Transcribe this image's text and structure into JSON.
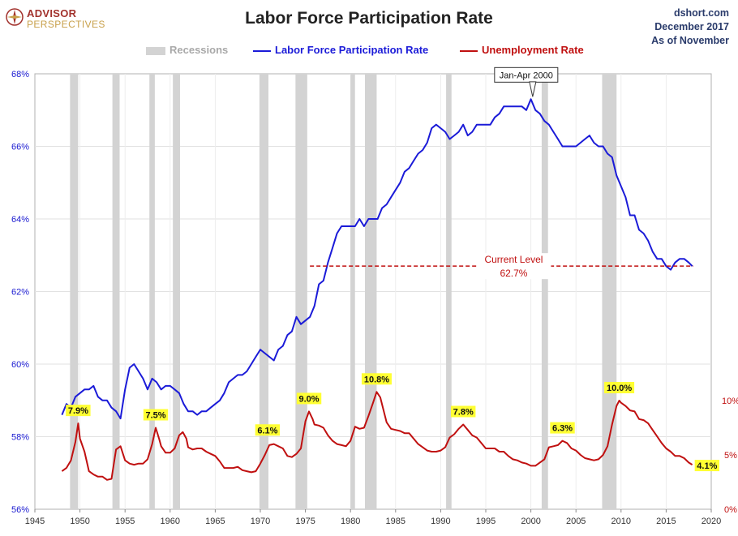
{
  "header": {
    "logo_line1": "ADVISOR",
    "logo_line2": "PERSPECTIVES",
    "title": "Labor Force Participation Rate",
    "source_line1": "dshort.com",
    "source_line2": "December 2017",
    "source_line3": "As of November"
  },
  "colors": {
    "participation": "#1b1bd8",
    "unemployment": "#c01010",
    "recession": "#d3d3d3",
    "left_axis_text": "#1a1ad0",
    "right_axis_text": "#c01010",
    "label_bg": "#ffff33"
  },
  "legend": {
    "recessions": "Recessions",
    "participation": "Labor Force Participation Rate",
    "unemployment": "Unemployment Rate"
  },
  "annotations": {
    "peak_label": "Jan-Apr 2000",
    "current_label_line1": "Current Level",
    "current_label_line2": "62.7%"
  },
  "chart_data": {
    "type": "line",
    "title": "Labor Force Participation Rate",
    "x_range": [
      1945,
      2020
    ],
    "x_ticks": [
      "1945",
      "1950",
      "1955",
      "1960",
      "1965",
      "1970",
      "1975",
      "1980",
      "1985",
      "1990",
      "1995",
      "2000",
      "2005",
      "2010",
      "2015",
      "2020"
    ],
    "left_axis": {
      "range": [
        56,
        68
      ],
      "ticks": [
        "56%",
        "58%",
        "60%",
        "62%",
        "64%",
        "66%",
        "68%"
      ],
      "tick_values": [
        56,
        58,
        60,
        62,
        64,
        66,
        68
      ]
    },
    "right_axis": {
      "range": [
        0,
        10
      ],
      "ticks": [
        "0%",
        "5%",
        "10%"
      ],
      "tick_values": [
        0,
        5,
        10
      ]
    },
    "grid": true,
    "legend_position": "top",
    "recessions": [
      [
        1948.9,
        1949.8
      ],
      [
        1953.6,
        1954.4
      ],
      [
        1957.7,
        1958.3
      ],
      [
        1960.3,
        1961.1
      ],
      [
        1969.9,
        1970.9
      ],
      [
        1973.9,
        1975.2
      ],
      [
        1980.0,
        1980.5
      ],
      [
        1981.6,
        1982.9
      ],
      [
        1990.6,
        1991.2
      ],
      [
        2001.2,
        2001.9
      ],
      [
        2007.9,
        2009.5
      ]
    ],
    "series": [
      {
        "name": "Labor Force Participation Rate",
        "axis": "left",
        "x": [
          1948.0,
          1948.5,
          1949.0,
          1949.5,
          1950.0,
          1950.5,
          1951.0,
          1951.5,
          1952.0,
          1952.5,
          1953.0,
          1953.5,
          1954.0,
          1954.5,
          1955.0,
          1955.5,
          1956.0,
          1956.5,
          1957.0,
          1957.5,
          1958.0,
          1958.5,
          1959.0,
          1959.5,
          1960.0,
          1960.5,
          1961.0,
          1961.5,
          1962.0,
          1962.5,
          1963.0,
          1963.5,
          1964.0,
          1964.5,
          1965.0,
          1965.5,
          1966.0,
          1966.5,
          1967.0,
          1967.5,
          1968.0,
          1968.5,
          1969.0,
          1969.5,
          1970.0,
          1970.5,
          1971.0,
          1971.5,
          1972.0,
          1972.5,
          1973.0,
          1973.5,
          1974.0,
          1974.5,
          1975.0,
          1975.5,
          1976.0,
          1976.5,
          1977.0,
          1977.5,
          1978.0,
          1978.5,
          1979.0,
          1979.5,
          1980.0,
          1980.5,
          1981.0,
          1981.5,
          1982.0,
          1982.5,
          1983.0,
          1983.5,
          1984.0,
          1984.5,
          1985.0,
          1985.5,
          1986.0,
          1986.5,
          1987.0,
          1987.5,
          1988.0,
          1988.5,
          1989.0,
          1989.5,
          1990.0,
          1990.5,
          1991.0,
          1991.5,
          1992.0,
          1992.5,
          1993.0,
          1993.5,
          1994.0,
          1994.5,
          1995.0,
          1995.5,
          1996.0,
          1996.5,
          1997.0,
          1997.5,
          1998.0,
          1998.5,
          1999.0,
          1999.5,
          2000.0,
          2000.5,
          2001.0,
          2001.5,
          2002.0,
          2002.5,
          2003.0,
          2003.5,
          2004.0,
          2004.5,
          2005.0,
          2005.5,
          2006.0,
          2006.5,
          2007.0,
          2007.5,
          2008.0,
          2008.5,
          2009.0,
          2009.5,
          2010.0,
          2010.5,
          2011.0,
          2011.5,
          2012.0,
          2012.5,
          2013.0,
          2013.5,
          2014.0,
          2014.5,
          2015.0,
          2015.5,
          2016.0,
          2016.5,
          2017.0,
          2017.5,
          2017.9
        ],
        "values": [
          58.6,
          58.9,
          58.8,
          59.1,
          59.2,
          59.3,
          59.3,
          59.4,
          59.1,
          59.0,
          59.0,
          58.8,
          58.7,
          58.5,
          59.3,
          59.9,
          60.0,
          59.8,
          59.6,
          59.3,
          59.6,
          59.5,
          59.3,
          59.4,
          59.4,
          59.3,
          59.2,
          58.9,
          58.7,
          58.7,
          58.6,
          58.7,
          58.7,
          58.8,
          58.9,
          59.0,
          59.2,
          59.5,
          59.6,
          59.7,
          59.7,
          59.8,
          60.0,
          60.2,
          60.4,
          60.3,
          60.2,
          60.1,
          60.4,
          60.5,
          60.8,
          60.9,
          61.3,
          61.1,
          61.2,
          61.3,
          61.6,
          62.2,
          62.3,
          62.8,
          63.2,
          63.6,
          63.8,
          63.8,
          63.8,
          63.8,
          64.0,
          63.8,
          64.0,
          64.0,
          64.0,
          64.3,
          64.4,
          64.6,
          64.8,
          65.0,
          65.3,
          65.4,
          65.6,
          65.8,
          65.9,
          66.1,
          66.5,
          66.6,
          66.5,
          66.4,
          66.2,
          66.3,
          66.4,
          66.6,
          66.3,
          66.4,
          66.6,
          66.6,
          66.6,
          66.6,
          66.8,
          66.9,
          67.1,
          67.1,
          67.1,
          67.1,
          67.1,
          67.0,
          67.3,
          67.0,
          66.9,
          66.7,
          66.6,
          66.4,
          66.2,
          66.0,
          66.0,
          66.0,
          66.0,
          66.1,
          66.2,
          66.3,
          66.1,
          66.0,
          66.0,
          65.8,
          65.7,
          65.2,
          64.9,
          64.6,
          64.1,
          64.1,
          63.7,
          63.6,
          63.4,
          63.1,
          62.9,
          62.9,
          62.7,
          62.6,
          62.8,
          62.9,
          62.9,
          62.8,
          62.7
        ]
      },
      {
        "name": "Unemployment Rate",
        "axis": "right",
        "x": [
          1948.0,
          1948.5,
          1949.0,
          1949.5,
          1949.8,
          1950.0,
          1950.5,
          1951.0,
          1951.5,
          1952.0,
          1952.5,
          1953.0,
          1953.5,
          1954.0,
          1954.5,
          1955.0,
          1955.5,
          1956.0,
          1956.5,
          1957.0,
          1957.5,
          1958.0,
          1958.4,
          1958.8,
          1959.0,
          1959.5,
          1960.0,
          1960.5,
          1961.0,
          1961.4,
          1961.8,
          1962.0,
          1962.5,
          1963.0,
          1963.5,
          1964.0,
          1964.5,
          1965.0,
          1965.5,
          1966.0,
          1966.5,
          1967.0,
          1967.5,
          1968.0,
          1968.5,
          1969.0,
          1969.5,
          1970.0,
          1970.5,
          1971.0,
          1971.5,
          1972.0,
          1972.5,
          1973.0,
          1973.5,
          1974.0,
          1974.5,
          1975.0,
          1975.4,
          1975.8,
          1976.0,
          1976.5,
          1977.0,
          1977.5,
          1978.0,
          1978.5,
          1979.0,
          1979.5,
          1980.0,
          1980.5,
          1981.0,
          1981.5,
          1982.0,
          1982.5,
          1982.9,
          1983.3,
          1983.7,
          1984.0,
          1984.5,
          1985.0,
          1985.5,
          1986.0,
          1986.5,
          1987.0,
          1987.5,
          1988.0,
          1988.5,
          1989.0,
          1989.5,
          1990.0,
          1990.5,
          1991.0,
          1991.5,
          1992.0,
          1992.5,
          1993.0,
          1993.5,
          1994.0,
          1994.5,
          1995.0,
          1995.5,
          1996.0,
          1996.5,
          1997.0,
          1997.5,
          1998.0,
          1998.5,
          1999.0,
          1999.5,
          2000.0,
          2000.5,
          2001.0,
          2001.5,
          2002.0,
          2002.5,
          2003.0,
          2003.5,
          2004.0,
          2004.5,
          2005.0,
          2005.5,
          2006.0,
          2006.5,
          2007.0,
          2007.5,
          2008.0,
          2008.5,
          2009.0,
          2009.5,
          2009.8,
          2010.0,
          2010.5,
          2011.0,
          2011.5,
          2012.0,
          2012.5,
          2013.0,
          2013.5,
          2014.0,
          2014.5,
          2015.0,
          2015.5,
          2016.0,
          2016.5,
          2017.0,
          2017.5,
          2017.9
        ],
        "values": [
          3.5,
          3.8,
          4.5,
          6.2,
          7.9,
          6.5,
          5.3,
          3.5,
          3.2,
          3.0,
          3.0,
          2.7,
          2.8,
          5.5,
          5.8,
          4.5,
          4.2,
          4.1,
          4.2,
          4.2,
          4.6,
          6.0,
          7.5,
          6.4,
          5.8,
          5.2,
          5.2,
          5.6,
          6.8,
          7.1,
          6.5,
          5.7,
          5.5,
          5.6,
          5.6,
          5.3,
          5.1,
          4.9,
          4.4,
          3.8,
          3.8,
          3.8,
          3.9,
          3.6,
          3.5,
          3.4,
          3.5,
          4.2,
          5.0,
          5.9,
          6.0,
          5.8,
          5.6,
          4.9,
          4.8,
          5.1,
          5.6,
          8.1,
          9.0,
          8.3,
          7.8,
          7.7,
          7.5,
          6.8,
          6.3,
          6.0,
          5.9,
          5.8,
          6.3,
          7.6,
          7.4,
          7.5,
          8.6,
          9.8,
          10.8,
          10.3,
          9.0,
          8.0,
          7.4,
          7.3,
          7.2,
          7.0,
          7.0,
          6.5,
          6.0,
          5.7,
          5.4,
          5.3,
          5.3,
          5.4,
          5.7,
          6.6,
          6.9,
          7.4,
          7.8,
          7.3,
          6.8,
          6.6,
          6.1,
          5.6,
          5.6,
          5.6,
          5.3,
          5.3,
          4.9,
          4.6,
          4.5,
          4.3,
          4.2,
          4.0,
          4.0,
          4.3,
          4.6,
          5.7,
          5.8,
          5.9,
          6.3,
          6.1,
          5.6,
          5.4,
          5.0,
          4.7,
          4.6,
          4.5,
          4.6,
          5.0,
          5.8,
          7.8,
          9.5,
          10.0,
          9.8,
          9.5,
          9.1,
          9.0,
          8.3,
          8.2,
          7.9,
          7.3,
          6.7,
          6.1,
          5.6,
          5.3,
          4.9,
          4.9,
          4.7,
          4.3,
          4.1
        ]
      }
    ],
    "data_labels": [
      {
        "x": 1949.8,
        "y": 7.9,
        "text": "7.9%"
      },
      {
        "x": 1958.4,
        "y": 7.5,
        "text": "7.5%"
      },
      {
        "x": 1970.8,
        "y": 6.1,
        "text": "6.1%"
      },
      {
        "x": 1975.4,
        "y": 9.0,
        "text": "9.0%"
      },
      {
        "x": 1982.9,
        "y": 10.8,
        "text": "10.8%"
      },
      {
        "x": 1992.5,
        "y": 7.8,
        "text": "7.8%"
      },
      {
        "x": 2003.5,
        "y": 6.3,
        "text": "6.3%"
      },
      {
        "x": 2009.8,
        "y": 10.0,
        "text": "10.0%"
      },
      {
        "x": 2017.9,
        "y": 4.1,
        "text": "4.1%"
      }
    ],
    "peak": {
      "x": 2000.2,
      "y": 67.3
    },
    "current_level": {
      "value": 62.7,
      "x_start": 1975.5,
      "x_end": 2018.0
    }
  }
}
